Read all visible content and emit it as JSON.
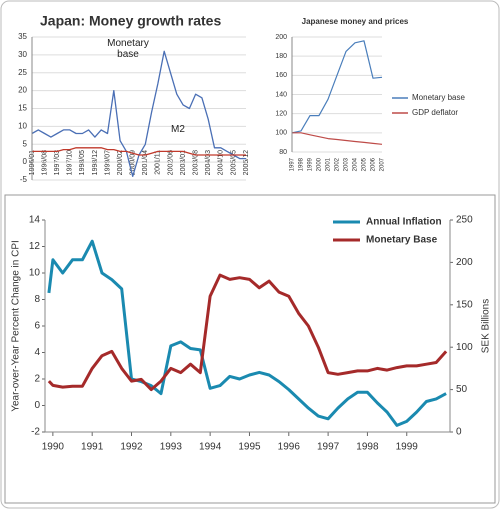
{
  "chart_data": [
    {
      "type": "line",
      "title": "Japan: Money growth rates",
      "categories": [
        "1996/01",
        null,
        "1996/08",
        null,
        "1997/03",
        null,
        "1997/10",
        null,
        "1998/05",
        null,
        "1998/12",
        null,
        "1999/07",
        null,
        "2000/02",
        null,
        "2000/09",
        null,
        "2001/04",
        null,
        "2001/11",
        null,
        "2002/06",
        null,
        "2003/01",
        null,
        "2003/08",
        null,
        "2004/03",
        null,
        "2004/10",
        null,
        "2005/05",
        null,
        "2005/12"
      ],
      "series": [
        {
          "color": "#4a6fb5",
          "values": [
            8,
            9,
            8,
            7,
            8,
            9,
            9,
            8,
            8,
            9,
            7,
            9,
            8,
            20,
            6,
            3,
            -4,
            2,
            5,
            14,
            22,
            31,
            25,
            19,
            16,
            15,
            19,
            18,
            12,
            4,
            4,
            3,
            2,
            1,
            1
          ]
        },
        {
          "color": "#c0392b",
          "values": [
            3,
            3,
            3,
            3,
            3,
            3.5,
            3.5,
            4,
            4,
            4,
            4,
            4,
            3.5,
            3.5,
            3,
            3,
            2.5,
            2,
            2,
            2.5,
            3,
            3,
            3,
            3,
            3,
            2.5,
            2,
            2,
            2,
            2,
            2,
            2,
            2,
            2,
            2
          ]
        }
      ],
      "ylim": [
        -5,
        35
      ],
      "yticks": [
        -5,
        0,
        5,
        10,
        15,
        20,
        25,
        30,
        35
      ],
      "grid": true,
      "annotations": [
        "Monetary base",
        "M2"
      ]
    },
    {
      "type": "line",
      "title": "Japanese money and prices",
      "categories": [
        "1997",
        "1998",
        "1999",
        "2000",
        "2001",
        "2002",
        "2003",
        "2004",
        "2005",
        "2006",
        "2007"
      ],
      "series": [
        {
          "name": "Monetary base",
          "color": "#4a7ebb",
          "values": [
            100,
            102,
            118,
            118,
            135,
            160,
            185,
            194,
            196,
            157,
            158
          ]
        },
        {
          "name": "GDP deflator",
          "color": "#be4b48",
          "values": [
            100,
            100,
            98,
            96,
            94,
            93,
            92,
            91,
            90,
            89,
            88
          ]
        }
      ],
      "ylim": [
        80,
        200
      ],
      "yticks": [
        80,
        100,
        120,
        140,
        160,
        180,
        200
      ],
      "grid": true,
      "legend": "right"
    },
    {
      "type": "line",
      "ylabel": "Year-over-Year Percent Change in CPI",
      "y2label": "SEK Billions",
      "x": [
        1989.9,
        1990,
        1990.25,
        1990.5,
        1990.75,
        1991,
        1991.25,
        1991.5,
        1991.75,
        1992,
        1992.25,
        1992.5,
        1992.75,
        1993,
        1993.25,
        1993.5,
        1993.75,
        1994,
        1994.25,
        1994.5,
        1994.75,
        1995,
        1995.25,
        1995.5,
        1995.75,
        1996,
        1996.25,
        1996.5,
        1996.75,
        1997,
        1997.25,
        1997.5,
        1997.75,
        1998,
        1998.25,
        1998.5,
        1998.75,
        1999,
        1999.25,
        1999.5,
        1999.75,
        2000
      ],
      "series": [
        {
          "name": "Annual Inflation",
          "color": "#1a8ab0",
          "values": [
            8.5,
            11,
            10,
            11,
            11,
            12.4,
            10,
            9.5,
            8.8,
            2,
            1.8,
            1.5,
            0.9,
            4.5,
            4.8,
            4.3,
            4.2,
            1.3,
            1.5,
            2.2,
            2,
            2.3,
            2.5,
            2.3,
            1.8,
            1.2,
            0.5,
            -0.2,
            -0.8,
            -1,
            -0.2,
            0.5,
            1,
            1,
            0.2,
            -0.5,
            -1.5,
            -1.2,
            -0.5,
            0.3,
            0.5,
            0.9
          ]
        },
        {
          "name": "Monetary Base",
          "color": "#a52a2a",
          "axis": "y2",
          "values": [
            60,
            55,
            53,
            54,
            54,
            75,
            90,
            95,
            75,
            60,
            62,
            50,
            60,
            75,
            70,
            80,
            70,
            160,
            185,
            180,
            182,
            180,
            170,
            178,
            165,
            160,
            140,
            125,
            100,
            70,
            68,
            70,
            72,
            72,
            75,
            73,
            76,
            78,
            78,
            80,
            82,
            95
          ]
        }
      ],
      "xlim": [
        1989.8,
        2000.1
      ],
      "xticks": [
        1990,
        1991,
        1992,
        1993,
        1994,
        1995,
        1996,
        1997,
        1998,
        1999
      ],
      "ylim": [
        -2,
        14
      ],
      "yticks": [
        -2,
        0,
        2,
        4,
        6,
        8,
        10,
        12,
        14
      ],
      "y2lim": [
        0,
        250
      ],
      "y2ticks": [
        0,
        50,
        100,
        150,
        200,
        250
      ],
      "legend": "top-right"
    }
  ]
}
